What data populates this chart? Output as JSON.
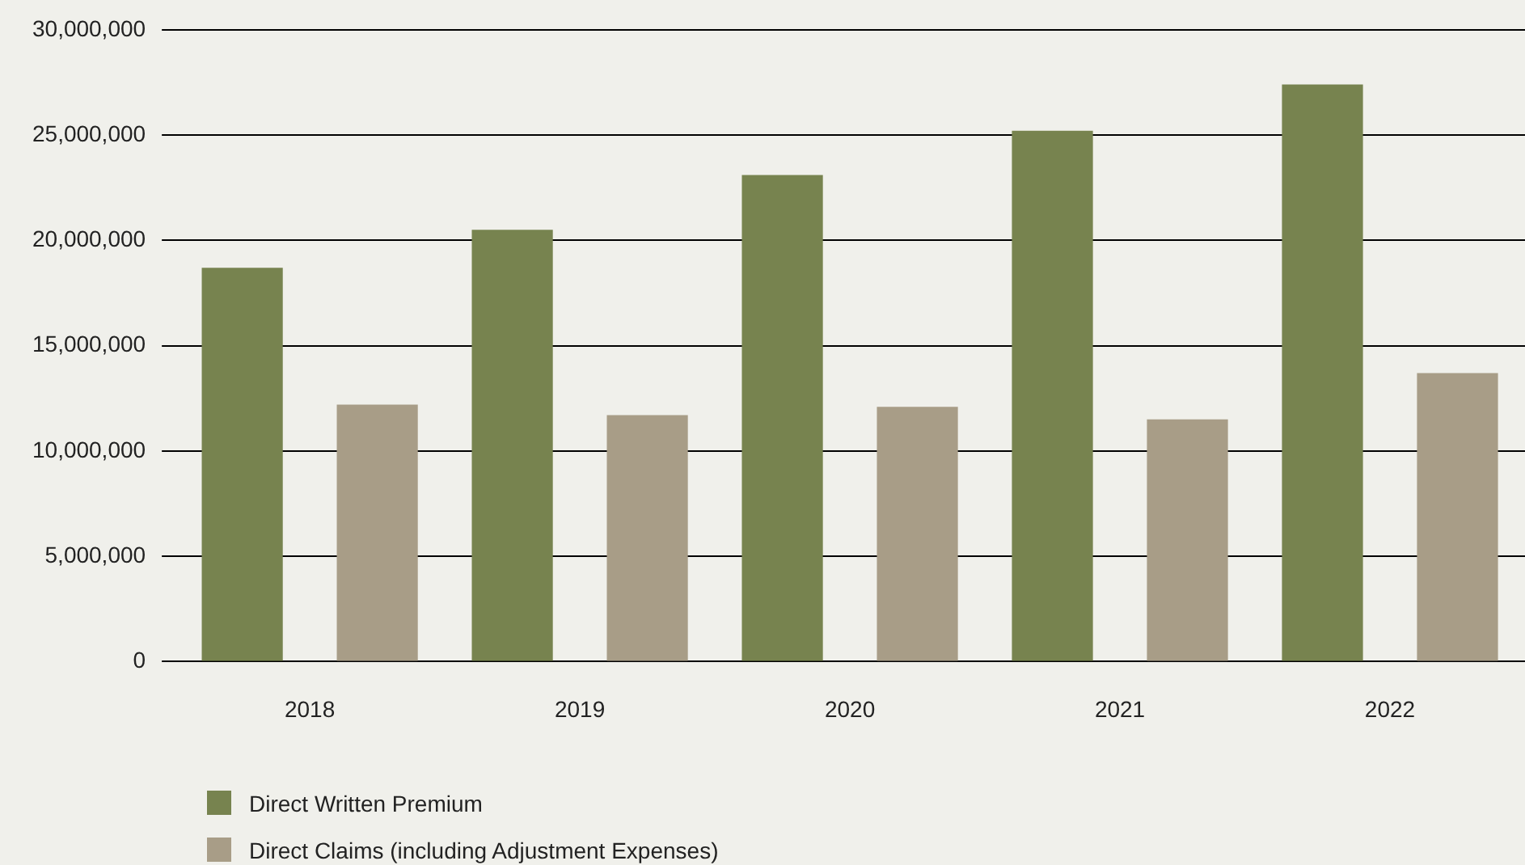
{
  "chart_data": {
    "type": "bar",
    "categories": [
      "2018",
      "2019",
      "2020",
      "2021",
      "2022"
    ],
    "series": [
      {
        "name": "Direct Written Premium",
        "color": "#77834f",
        "values": [
          18700000,
          20500000,
          23100000,
          25200000,
          27400000
        ]
      },
      {
        "name": "Direct Claims (including Adjustment Expenses)",
        "color": "#a89d87",
        "values": [
          12200000,
          11700000,
          12100000,
          11500000,
          13700000
        ]
      }
    ],
    "ylim": [
      0,
      30000000
    ],
    "yticks": [
      {
        "value": 0,
        "label": "0"
      },
      {
        "value": 5000000,
        "label": "5,000,000"
      },
      {
        "value": 10000000,
        "label": "10,000,000"
      },
      {
        "value": 15000000,
        "label": "15,000,000"
      },
      {
        "value": 20000000,
        "label": "20,000,000"
      },
      {
        "value": 25000000,
        "label": "25,000,000"
      },
      {
        "value": 30000000,
        "label": "30,000,000"
      }
    ],
    "grid": "y",
    "legend": "bottom left"
  }
}
